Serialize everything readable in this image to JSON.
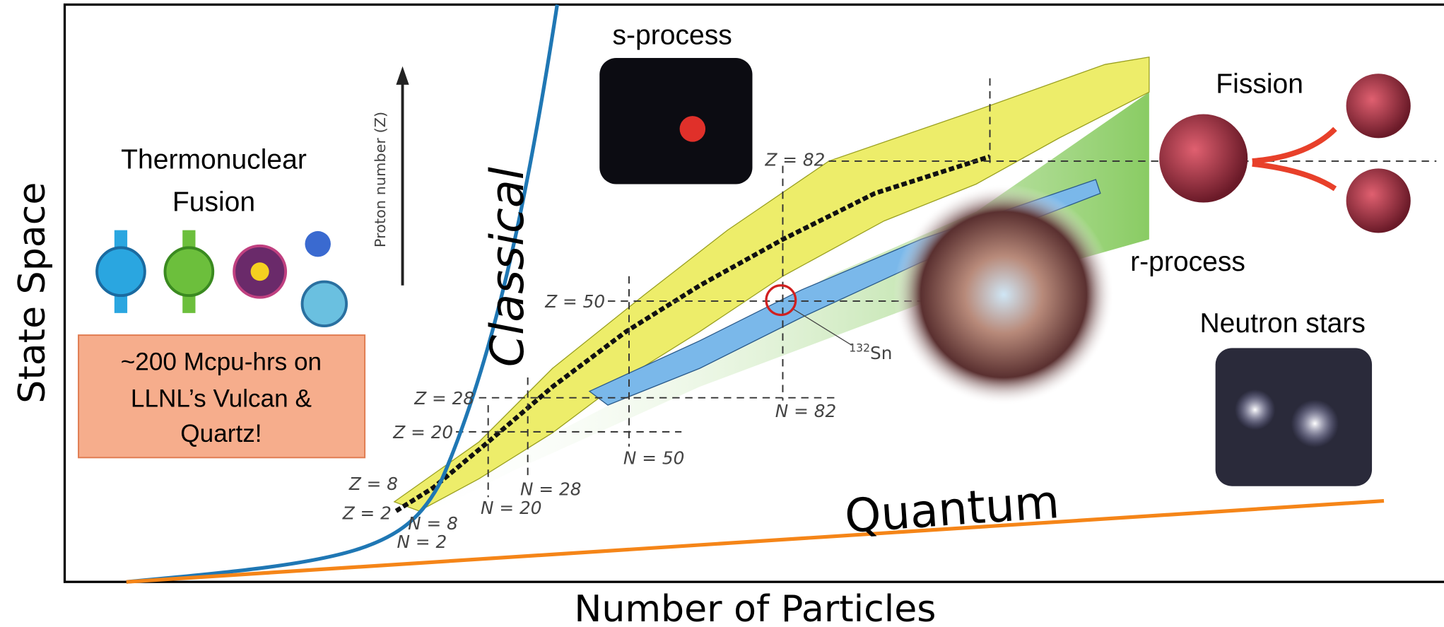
{
  "axes": {
    "y_label": "State Space",
    "x_label": "Number of Particles"
  },
  "curves": {
    "classical": "Classical",
    "quantum": "Quantum"
  },
  "fusion": {
    "title_lines": [
      "Thermonuclear",
      "Fusion"
    ],
    "note_lines": [
      "~200 Mcpu-hrs on",
      "LLNL’s Vulcan &",
      "Quartz!"
    ]
  },
  "processes": {
    "s_process": "s-process",
    "fission": "Fission",
    "r_process": "r-process",
    "neutron_stars": "Neutron stars"
  },
  "nuclide_chart": {
    "axis_label": "Proton number (Z)",
    "z_labels": [
      "Z = 2",
      "Z = 8",
      "Z = 20",
      "Z = 28",
      "Z = 50",
      "Z = 82"
    ],
    "n_labels": [
      "N = 2",
      "N = 8",
      "N = 20",
      "N = 28",
      "N = 50",
      "N = 82"
    ],
    "isotope": {
      "mass": "132",
      "symbol": "Sn"
    }
  }
}
